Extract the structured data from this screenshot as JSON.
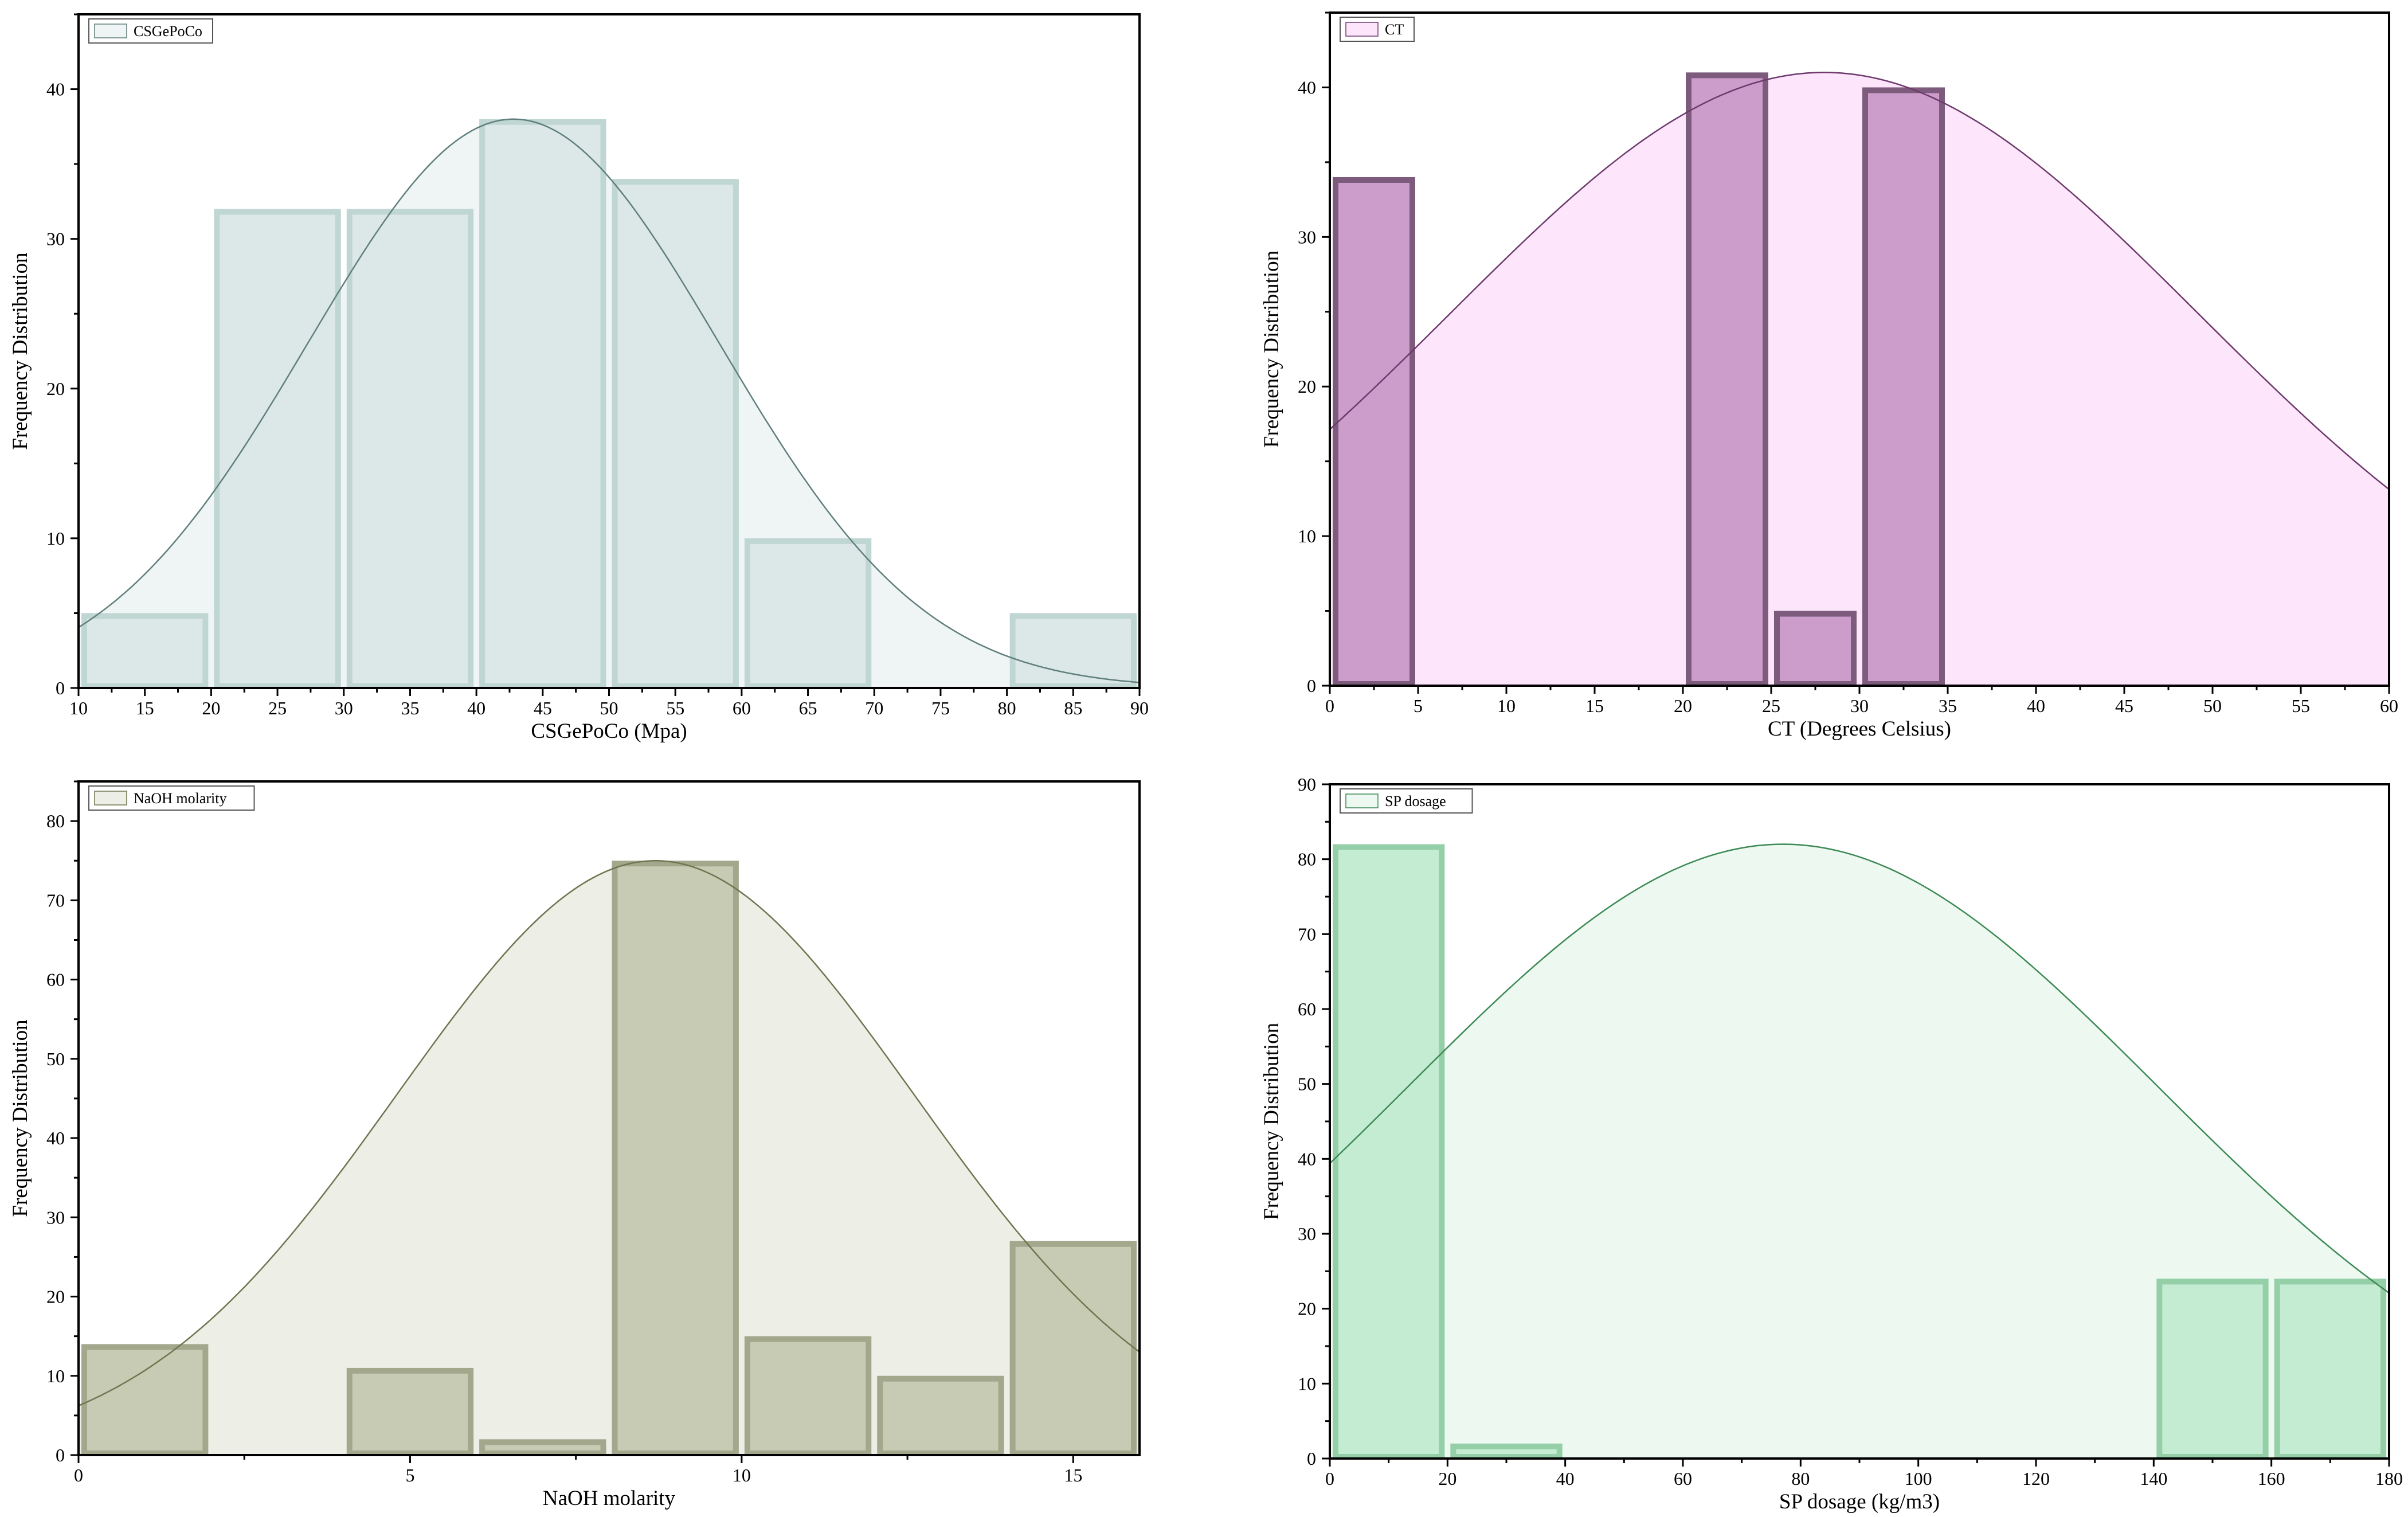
{
  "chart_data": [
    {
      "type": "bar",
      "title": "",
      "xlabel": "CSGePoCo (Mpa)",
      "ylabel": "Frequency Distribution",
      "legend": "CSGePoCo",
      "legend_placement": "top-left",
      "xlim": [
        10,
        90
      ],
      "ylim": [
        0,
        45
      ],
      "xticks": [
        10,
        15,
        20,
        25,
        30,
        35,
        40,
        45,
        50,
        55,
        60,
        65,
        70,
        75,
        80,
        85,
        90
      ],
      "yticks": [
        0,
        10,
        20,
        30,
        40
      ],
      "bins": [
        [
          10,
          20
        ],
        [
          20,
          30
        ],
        [
          30,
          40
        ],
        [
          40,
          50
        ],
        [
          50,
          60
        ],
        [
          60,
          70
        ],
        [
          70,
          80
        ],
        [
          80,
          90
        ]
      ],
      "values": [
        5,
        32,
        32,
        38,
        34,
        10,
        0,
        5
      ],
      "curve": {
        "type": "normal",
        "mean": 42.8,
        "sd": 15.5,
        "peak": 38
      },
      "colors": {
        "bar_fill": "#dce8e7",
        "bar_edge": "#bfd6d2",
        "curve_fill": "#eff5f4",
        "curve_line": "#607f7c"
      }
    },
    {
      "type": "bar",
      "title": "",
      "xlabel": "CT (Degrees Celsius)",
      "ylabel": "Frequency Distribution",
      "legend": "CT",
      "legend_placement": "top-left",
      "xlim": [
        0,
        60
      ],
      "ylim": [
        0,
        45
      ],
      "xticks": [
        0,
        5,
        10,
        15,
        20,
        25,
        30,
        35,
        40,
        45,
        50,
        55,
        60
      ],
      "yticks": [
        0,
        10,
        20,
        30,
        40
      ],
      "bins": [
        [
          0,
          5
        ],
        [
          20,
          25
        ],
        [
          25,
          30
        ],
        [
          30,
          35
        ]
      ],
      "values": [
        34,
        41,
        5,
        40
      ],
      "curve": {
        "type": "normal",
        "mean": 28,
        "sd": 21.2,
        "peak": 41
      },
      "colors": {
        "bar_fill": "#cc9ccb",
        "bar_edge": "#7d5b7d",
        "curve_fill": "#fde6fb",
        "curve_line": "#6e3a6e"
      }
    },
    {
      "type": "bar",
      "title": "",
      "xlabel": "NaOH molarity",
      "ylabel": "Frequency Distribution",
      "legend": "NaOH molarity",
      "legend_placement": "top-left",
      "xlim": [
        0,
        16
      ],
      "ylim": [
        0,
        85
      ],
      "xticks": [
        0,
        5,
        10,
        15
      ],
      "yticks": [
        0,
        10,
        20,
        30,
        40,
        50,
        60,
        70,
        80
      ],
      "bins": [
        [
          0,
          2
        ],
        [
          2,
          4
        ],
        [
          4,
          6
        ],
        [
          6,
          8
        ],
        [
          8,
          10
        ],
        [
          10,
          12
        ],
        [
          12,
          14
        ],
        [
          14,
          16
        ]
      ],
      "values": [
        14,
        0,
        11,
        2,
        75,
        15,
        10,
        27
      ],
      "curve": {
        "type": "normal",
        "mean": 8.7,
        "sd": 3.9,
        "peak": 75
      },
      "colors": {
        "bar_fill": "#c8cbb3",
        "bar_edge": "#a3a78c",
        "curve_fill": "#edeee5",
        "curve_line": "#6f7550"
      }
    },
    {
      "type": "bar",
      "title": "",
      "xlabel": "SP dosage (kg/m3)",
      "ylabel": "Frequency Distribution",
      "legend": "SP dosage",
      "legend_placement": "top-left",
      "xlim": [
        0,
        180
      ],
      "ylim": [
        0,
        90
      ],
      "xticks": [
        0,
        20,
        40,
        60,
        80,
        100,
        120,
        140,
        160,
        180
      ],
      "yticks": [
        0,
        10,
        20,
        30,
        40,
        50,
        60,
        70,
        80,
        90
      ],
      "bins": [
        [
          0,
          20
        ],
        [
          20,
          40
        ],
        [
          140,
          160
        ],
        [
          160,
          180
        ]
      ],
      "values": [
        82,
        2,
        24,
        24
      ],
      "curve": {
        "type": "normal",
        "mean": 77,
        "sd": 63.6,
        "peak": 82
      },
      "colors": {
        "bar_fill": "#c4ecd2",
        "bar_edge": "#94cfa8",
        "curve_fill": "#edf8f0",
        "curve_line": "#3d8a55"
      }
    }
  ]
}
